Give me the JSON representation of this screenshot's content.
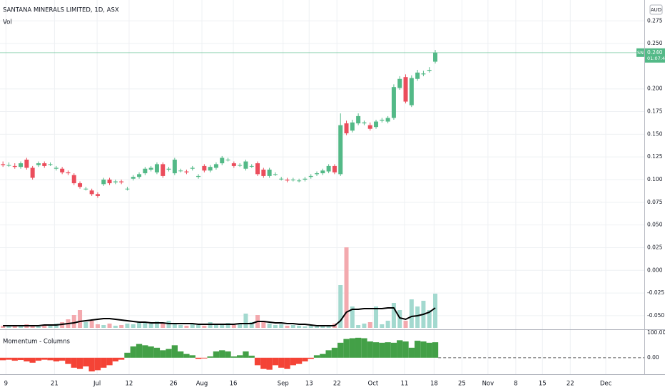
{
  "currency": "AUD",
  "symbol": "SN",
  "countdown": "01:07:44",
  "chart_data": [
    {
      "type": "candlestick",
      "title": "SANTANA MINERALS LIMITED, 1D, ASX",
      "xlim": [
        -0.5,
        108.3
      ],
      "xticks": [
        {
          "value": 0.5,
          "label": "9"
        },
        {
          "value": 8.7,
          "label": "21"
        },
        {
          "value": 15.9,
          "label": "Jul"
        },
        {
          "value": 21.3,
          "label": "12"
        },
        {
          "value": 28.8,
          "label": "26"
        },
        {
          "value": 33.6,
          "label": "Aug"
        },
        {
          "value": 38.9,
          "label": "16"
        },
        {
          "value": 47.3,
          "label": "Sep"
        },
        {
          "value": 51.7,
          "label": "13"
        },
        {
          "value": 56.4,
          "label": "22"
        },
        {
          "value": 62.5,
          "label": "Oct"
        },
        {
          "value": 67.8,
          "label": "11"
        },
        {
          "value": 72.8,
          "label": "18"
        },
        {
          "value": 77.5,
          "label": "25"
        },
        {
          "value": 81.9,
          "label": "Nov"
        },
        {
          "value": 86.6,
          "label": "8"
        },
        {
          "value": 91.1,
          "label": "15"
        },
        {
          "value": 95.8,
          "label": "22"
        },
        {
          "value": 101.8,
          "label": "Dec"
        }
      ],
      "ylim": [
        -0.065,
        0.298
      ],
      "yticks": [
        {
          "value": 0.275,
          "label": "0.275"
        },
        {
          "value": 0.25,
          "label": "0.250"
        },
        {
          "value": 0.2,
          "label": "0.200"
        },
        {
          "value": 0.175,
          "label": "0.175"
        },
        {
          "value": 0.15,
          "label": "0.150"
        },
        {
          "value": 0.125,
          "label": "0.125"
        },
        {
          "value": 0.1,
          "label": "0.100"
        },
        {
          "value": 0.075,
          "label": "0.075"
        },
        {
          "value": 0.05,
          "label": "0.050"
        },
        {
          "value": 0.025,
          "label": "0.025"
        },
        {
          "value": 0,
          "label": "0.000"
        },
        {
          "value": -0.025,
          "label": "-0.025"
        },
        {
          "value": -0.05,
          "label": "-0.050"
        }
      ],
      "grid": true,
      "up_color": "#53b987",
      "down_color": "#eb4d5c",
      "last_price": {
        "value": 0.24,
        "label": "0.240"
      },
      "open": [
        0.117,
        0.116,
        0.115,
        0.114,
        0.122,
        0.113,
        0.116,
        0.118,
        0.117,
        0.112,
        0.112,
        0.108,
        0.105,
        0.096,
        0.09,
        0.088,
        0.084,
        0.095,
        0.1,
        0.097,
        0.098,
        0.09,
        0.101,
        0.103,
        0.107,
        0.111,
        0.108,
        0.117,
        0.111,
        0.107,
        0.11,
        0.109,
        0.112,
        0.103,
        0.115,
        0.11,
        0.113,
        0.118,
        0.122,
        0.118,
        0.116,
        0.112,
        0.115,
        0.118,
        0.111,
        0.104,
        0.106,
        0.101,
        0.1,
        0.1,
        0.099,
        0.1,
        0.103,
        0.106,
        0.107,
        0.109,
        0.115,
        0.106,
        0.162,
        0.154,
        0.162,
        0.162,
        0.16,
        0.158,
        0.165,
        0.164,
        0.168,
        0.201,
        0.213,
        0.182,
        0.211,
        0.216,
        0.22,
        0.23
      ],
      "high": [
        0.12,
        0.119,
        0.118,
        0.12,
        0.124,
        0.115,
        0.12,
        0.12,
        0.119,
        0.115,
        0.114,
        0.11,
        0.107,
        0.098,
        0.092,
        0.09,
        0.086,
        0.102,
        0.102,
        0.1,
        0.1,
        0.092,
        0.105,
        0.108,
        0.114,
        0.115,
        0.119,
        0.119,
        0.114,
        0.124,
        0.112,
        0.111,
        0.115,
        0.106,
        0.117,
        0.116,
        0.119,
        0.126,
        0.124,
        0.12,
        0.118,
        0.122,
        0.117,
        0.12,
        0.113,
        0.113,
        0.108,
        0.103,
        0.102,
        0.102,
        0.101,
        0.103,
        0.106,
        0.109,
        0.112,
        0.117,
        0.117,
        0.173,
        0.165,
        0.166,
        0.173,
        0.165,
        0.163,
        0.166,
        0.168,
        0.17,
        0.205,
        0.214,
        0.216,
        0.215,
        0.221,
        0.22,
        0.224,
        0.243
      ],
      "low": [
        0.114,
        0.114,
        0.112,
        0.112,
        0.111,
        0.1,
        0.114,
        0.113,
        0.115,
        0.11,
        0.106,
        0.105,
        0.094,
        0.09,
        0.088,
        0.082,
        0.08,
        0.093,
        0.094,
        0.095,
        0.095,
        0.088,
        0.099,
        0.101,
        0.105,
        0.109,
        0.106,
        0.102,
        0.109,
        0.105,
        0.108,
        0.106,
        0.11,
        0.101,
        0.108,
        0.108,
        0.111,
        0.116,
        0.12,
        0.113,
        0.114,
        0.11,
        0.113,
        0.104,
        0.102,
        0.102,
        0.104,
        0.099,
        0.097,
        0.098,
        0.097,
        0.098,
        0.101,
        0.104,
        0.105,
        0.107,
        0.106,
        0.104,
        0.149,
        0.152,
        0.16,
        0.16,
        0.154,
        0.156,
        0.163,
        0.162,
        0.166,
        0.199,
        0.184,
        0.18,
        0.209,
        0.214,
        0.218,
        0.228
      ],
      "close": [
        0.116,
        0.116,
        0.114,
        0.118,
        0.113,
        0.102,
        0.118,
        0.115,
        0.117,
        0.113,
        0.108,
        0.107,
        0.096,
        0.092,
        0.09,
        0.084,
        0.082,
        0.1,
        0.096,
        0.098,
        0.097,
        0.09,
        0.103,
        0.106,
        0.112,
        0.113,
        0.117,
        0.104,
        0.112,
        0.122,
        0.11,
        0.108,
        0.113,
        0.104,
        0.11,
        0.114,
        0.117,
        0.124,
        0.122,
        0.115,
        0.116,
        0.12,
        0.115,
        0.106,
        0.104,
        0.111,
        0.106,
        0.101,
        0.099,
        0.1,
        0.099,
        0.101,
        0.104,
        0.107,
        0.11,
        0.115,
        0.108,
        0.16,
        0.151,
        0.163,
        0.17,
        0.163,
        0.156,
        0.164,
        0.166,
        0.168,
        0.202,
        0.211,
        0.186,
        0.212,
        0.218,
        0.217,
        0.221,
        0.24
      ]
    },
    {
      "type": "volume",
      "title": "Vol",
      "up_color": "#a3d9cf",
      "down_color": "#f3a9ae",
      "ma_color": "#000000",
      "values": [
        3,
        4,
        2,
        3,
        5,
        3,
        2,
        3,
        4,
        6,
        8,
        12,
        18,
        25,
        8,
        10,
        5,
        4,
        6,
        3,
        4,
        6,
        5,
        8,
        7,
        6,
        9,
        7,
        10,
        6,
        4,
        3,
        5,
        4,
        3,
        8,
        6,
        5,
        7,
        4,
        5,
        20,
        8,
        18,
        10,
        6,
        4,
        5,
        3,
        4,
        3,
        2,
        3,
        2,
        3,
        4,
        6,
        60,
        113,
        30,
        4,
        6,
        8,
        30,
        5,
        10,
        35,
        25,
        10,
        40,
        30,
        38,
        25,
        48
      ],
      "ma": [
        3,
        3,
        3,
        3,
        3,
        3,
        3,
        4,
        4,
        4,
        5,
        6,
        7,
        9,
        10,
        11,
        12,
        13,
        13,
        12,
        11,
        10,
        9,
        8,
        8,
        7,
        7,
        7,
        6,
        6,
        6,
        6,
        6,
        5,
        5,
        5,
        5,
        5,
        5,
        5,
        6,
        6,
        6,
        9,
        9,
        8,
        7,
        7,
        6,
        6,
        5,
        5,
        4,
        3,
        3,
        3,
        3,
        10,
        22,
        26,
        26,
        27,
        27,
        27,
        27,
        28,
        28,
        14,
        12,
        16,
        17,
        19,
        22,
        28
      ]
    },
    {
      "type": "columns",
      "title": "Momentum - Columns",
      "up_color": "#43a047",
      "down_color": "#f44336",
      "ylim": [
        -66,
        111
      ],
      "yticks": [
        {
          "value": 100,
          "label": "100.00"
        },
        {
          "value": 0,
          "label": "0.00"
        }
      ],
      "values": [
        -10,
        -8,
        -12,
        -9,
        -15,
        -20,
        -12,
        -8,
        -10,
        -15,
        -12,
        -25,
        -40,
        -45,
        -35,
        -55,
        -50,
        -40,
        -30,
        -15,
        -8,
        20,
        45,
        55,
        50,
        45,
        40,
        30,
        35,
        50,
        25,
        15,
        10,
        -5,
        -3,
        5,
        25,
        30,
        25,
        5,
        10,
        25,
        8,
        -30,
        -45,
        -48,
        -30,
        -40,
        -45,
        -30,
        -25,
        -15,
        -5,
        10,
        15,
        30,
        40,
        60,
        75,
        78,
        80,
        78,
        65,
        62,
        60,
        62,
        60,
        70,
        65,
        40,
        68,
        65,
        60,
        62
      ]
    }
  ]
}
